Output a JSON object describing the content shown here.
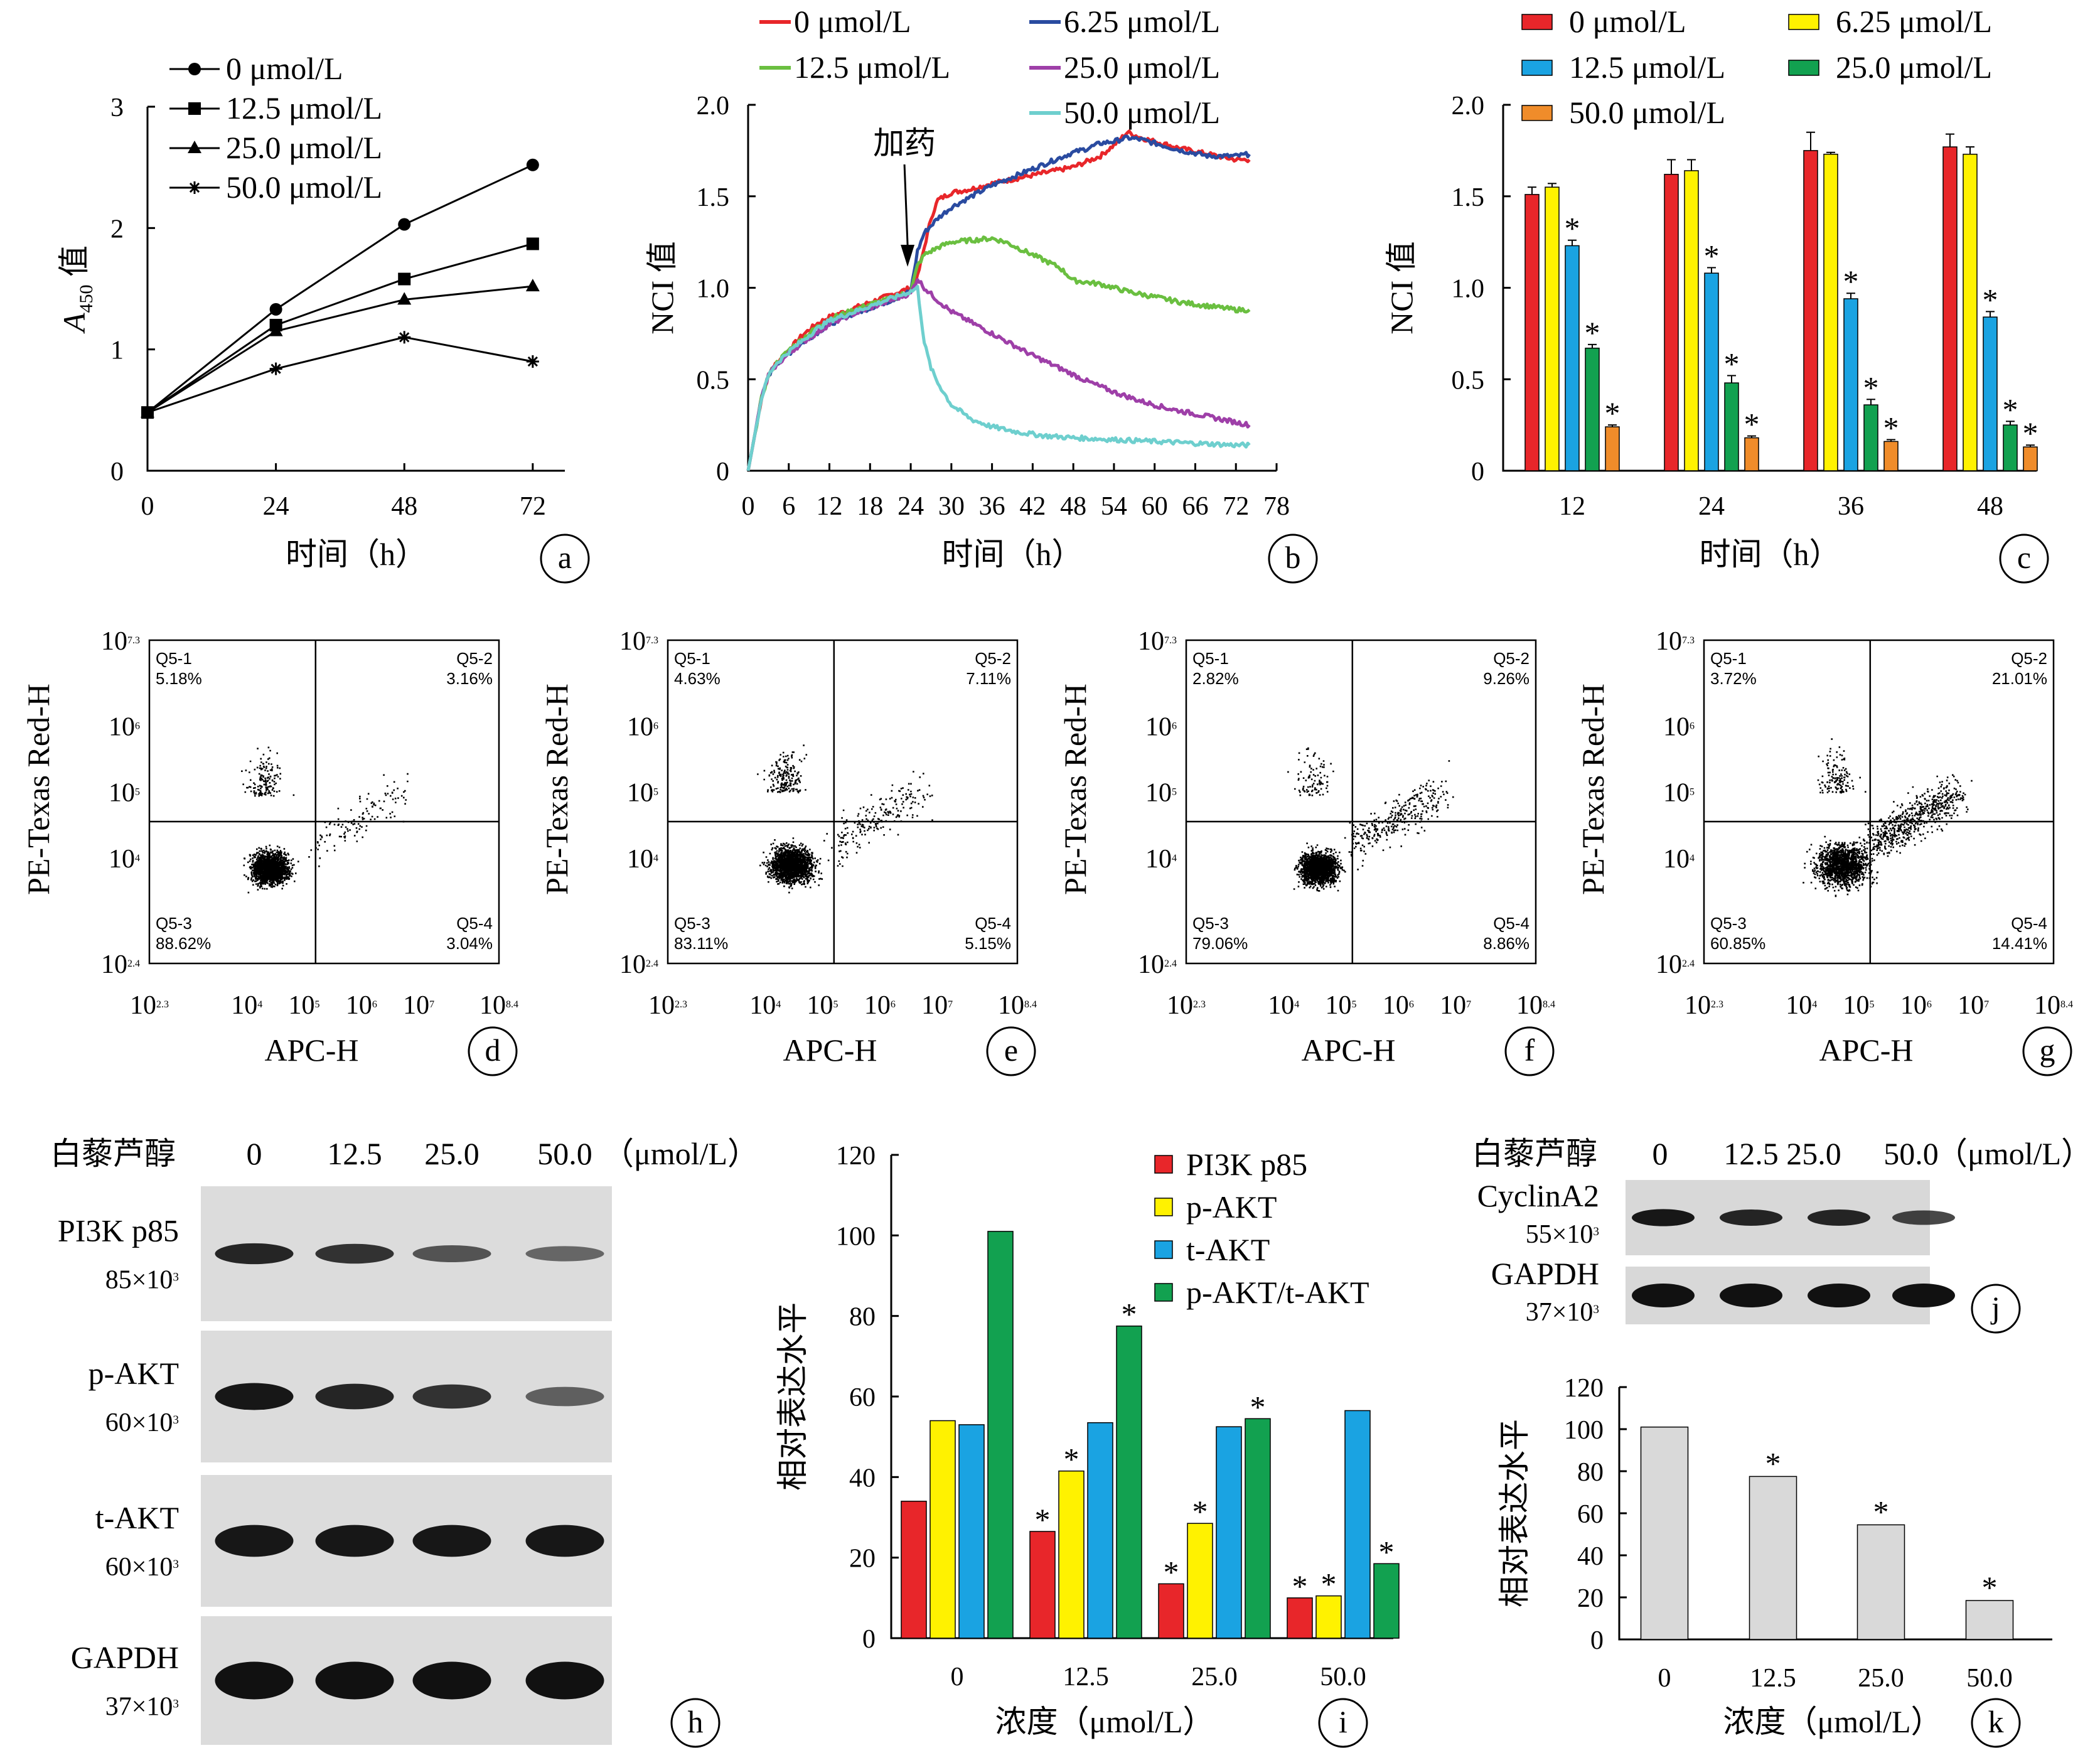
{
  "chart_data": [
    {
      "id": "a",
      "type": "line",
      "panel_label": "a",
      "xlabel": "时间（h）",
      "ylabel_main": "A",
      "ylabel_sub": "450",
      "ylabel_suffix": " 值",
      "x": [
        0,
        24,
        48,
        72
      ],
      "xlim": [
        0,
        78
      ],
      "ylim": [
        0,
        3
      ],
      "xticks": [
        "0",
        "24",
        "48",
        "72"
      ],
      "yticks": [
        "0",
        "1",
        "2",
        "3"
      ],
      "series": [
        {
          "name": "0 μmol/L",
          "marker": "circle",
          "values": [
            0.48,
            1.33,
            2.03,
            2.52
          ]
        },
        {
          "name": "12.5 μmol/L",
          "marker": "square",
          "values": [
            0.48,
            1.2,
            1.58,
            1.87
          ]
        },
        {
          "name": "25.0 μmol/L",
          "marker": "triangle",
          "values": [
            0.48,
            1.15,
            1.41,
            1.52
          ]
        },
        {
          "name": "50.0 μmol/L",
          "marker": "star",
          "values": [
            0.48,
            0.84,
            1.1,
            0.9
          ]
        }
      ]
    },
    {
      "id": "b",
      "type": "line",
      "panel_label": "b",
      "xlabel": "时间（h）",
      "ylabel": "NCI 值",
      "annotation": "加药",
      "annotation_x": 24,
      "xlim": [
        0,
        78
      ],
      "ylim": [
        0,
        2.0
      ],
      "xticks": [
        "0",
        "6",
        "12",
        "18",
        "24",
        "30",
        "36",
        "42",
        "48",
        "54",
        "60",
        "66",
        "72",
        "78"
      ],
      "yticks": [
        "0",
        "0.5",
        "1.0",
        "1.5",
        "2.0"
      ],
      "series": [
        {
          "name": "0 μmol/L",
          "color": "#e8262a",
          "x": [
            0,
            1,
            2,
            3,
            4,
            6,
            8,
            10,
            12,
            15,
            18,
            21,
            24,
            25,
            26,
            27,
            28,
            30,
            33,
            36,
            40,
            44,
            48,
            52,
            54,
            56,
            58,
            60,
            64,
            68,
            72,
            74
          ],
          "values": [
            0,
            0.2,
            0.4,
            0.52,
            0.58,
            0.66,
            0.74,
            0.8,
            0.84,
            0.88,
            0.92,
            0.96,
            1.0,
            1.06,
            1.22,
            1.38,
            1.48,
            1.52,
            1.54,
            1.57,
            1.6,
            1.63,
            1.66,
            1.72,
            1.78,
            1.85,
            1.82,
            1.8,
            1.76,
            1.73,
            1.7,
            1.7
          ]
        },
        {
          "name": "6.25 μmol/L",
          "color": "#2a4ba0",
          "x": [
            0,
            1,
            2,
            3,
            4,
            6,
            8,
            10,
            12,
            15,
            18,
            21,
            24,
            25,
            26,
            28,
            30,
            33,
            36,
            40,
            44,
            48,
            50,
            52,
            54,
            56,
            58,
            60,
            64,
            68,
            72,
            74
          ],
          "values": [
            0,
            0.2,
            0.4,
            0.52,
            0.58,
            0.64,
            0.7,
            0.75,
            0.8,
            0.85,
            0.89,
            0.93,
            0.98,
            1.2,
            1.3,
            1.38,
            1.44,
            1.5,
            1.56,
            1.62,
            1.68,
            1.74,
            1.76,
            1.79,
            1.8,
            1.82,
            1.81,
            1.79,
            1.75,
            1.72,
            1.72,
            1.73
          ]
        },
        {
          "name": "12.5 μmol/L",
          "color": "#6abf40",
          "x": [
            0,
            1,
            2,
            3,
            4,
            6,
            8,
            10,
            12,
            15,
            18,
            21,
            24,
            25,
            26,
            28,
            30,
            33,
            36,
            38,
            42,
            46,
            48,
            52,
            56,
            60,
            64,
            68,
            72,
            74
          ],
          "values": [
            0,
            0.2,
            0.4,
            0.52,
            0.58,
            0.66,
            0.72,
            0.78,
            0.83,
            0.87,
            0.91,
            0.94,
            0.98,
            1.12,
            1.18,
            1.22,
            1.25,
            1.26,
            1.27,
            1.25,
            1.18,
            1.11,
            1.04,
            1.02,
            0.98,
            0.95,
            0.92,
            0.9,
            0.88,
            0.88
          ]
        },
        {
          "name": "25.0 μmol/L",
          "color": "#9e3fa8",
          "x": [
            0,
            1,
            2,
            3,
            4,
            6,
            8,
            10,
            12,
            15,
            18,
            21,
            24,
            25,
            26,
            28,
            30,
            34,
            38,
            42,
            46,
            50,
            54,
            58,
            62,
            66,
            70,
            74
          ],
          "values": [
            0,
            0.2,
            0.4,
            0.52,
            0.57,
            0.64,
            0.7,
            0.75,
            0.8,
            0.85,
            0.89,
            0.93,
            0.97,
            1.05,
            1.0,
            0.93,
            0.87,
            0.79,
            0.71,
            0.63,
            0.56,
            0.49,
            0.43,
            0.38,
            0.34,
            0.31,
            0.28,
            0.25
          ]
        },
        {
          "name": "50.0 μmol/L",
          "color": "#6ecfce",
          "x": [
            0,
            1,
            2,
            3,
            4,
            6,
            8,
            10,
            12,
            15,
            18,
            21,
            24,
            25,
            26,
            27,
            28,
            30,
            33,
            36,
            40,
            44,
            48,
            54,
            60,
            66,
            72,
            74
          ],
          "values": [
            0,
            0.2,
            0.4,
            0.52,
            0.58,
            0.65,
            0.71,
            0.77,
            0.82,
            0.86,
            0.9,
            0.94,
            0.98,
            1.0,
            0.7,
            0.56,
            0.48,
            0.36,
            0.28,
            0.24,
            0.21,
            0.19,
            0.18,
            0.17,
            0.16,
            0.15,
            0.14,
            0.14
          ]
        }
      ]
    },
    {
      "id": "c",
      "type": "bar",
      "panel_label": "c",
      "xlabel": "时间（h）",
      "ylabel": "NCI 值",
      "ylim": [
        0,
        2.0
      ],
      "yticks": [
        "0",
        "0.5",
        "1.0",
        "1.5",
        "2.0"
      ],
      "categories": [
        "12",
        "24",
        "36",
        "48"
      ],
      "series": [
        {
          "name": "0 μmol/L",
          "color": "#e8262a",
          "values": [
            1.51,
            1.62,
            1.75,
            1.77
          ],
          "err": [
            0.04,
            0.08,
            0.1,
            0.07
          ],
          "sig": [
            false,
            false,
            false,
            false
          ]
        },
        {
          "name": "6.25 μmol/L",
          "color": "#fff200",
          "values": [
            1.55,
            1.64,
            1.73,
            1.73
          ],
          "err": [
            0.02,
            0.06,
            0.01,
            0.04
          ],
          "sig": [
            false,
            false,
            false,
            false
          ]
        },
        {
          "name": "12.5 μmol/L",
          "color": "#1aa3e2",
          "values": [
            1.23,
            1.08,
            0.94,
            0.84
          ],
          "err": [
            0.03,
            0.03,
            0.03,
            0.03
          ],
          "sig": [
            true,
            true,
            true,
            true
          ]
        },
        {
          "name": "25.0 μmol/L",
          "color": "#12a150",
          "values": [
            0.67,
            0.48,
            0.36,
            0.25
          ],
          "err": [
            0.02,
            0.04,
            0.03,
            0.02
          ],
          "sig": [
            true,
            true,
            true,
            true
          ]
        },
        {
          "name": "50.0 μmol/L",
          "color": "#f08c2a",
          "values": [
            0.24,
            0.18,
            0.16,
            0.13
          ],
          "err": [
            0.01,
            0.01,
            0.01,
            0.01
          ],
          "sig": [
            true,
            true,
            true,
            true
          ]
        }
      ]
    },
    {
      "id": "d",
      "type": "scatter",
      "panel_label": "d",
      "xlabel": "APC-H",
      "ylabel": "PE-Texas Red-H",
      "quadrants": [
        {
          "name": "Q5-1",
          "value": "5.18%"
        },
        {
          "name": "Q5-2",
          "value": "3.16%"
        },
        {
          "name": "Q5-3",
          "value": "88.62%"
        },
        {
          "name": "Q5-4",
          "value": "3.04%"
        }
      ]
    },
    {
      "id": "e",
      "type": "scatter",
      "panel_label": "e",
      "xlabel": "APC-H",
      "ylabel": "PE-Texas Red-H",
      "quadrants": [
        {
          "name": "Q5-1",
          "value": "4.63%"
        },
        {
          "name": "Q5-2",
          "value": "7.11%"
        },
        {
          "name": "Q5-3",
          "value": "83.11%"
        },
        {
          "name": "Q5-4",
          "value": "5.15%"
        }
      ]
    },
    {
      "id": "f",
      "type": "scatter",
      "panel_label": "f",
      "xlabel": "APC-H",
      "ylabel": "PE-Texas Red-H",
      "quadrants": [
        {
          "name": "Q5-1",
          "value": "2.82%"
        },
        {
          "name": "Q5-2",
          "value": "9.26%"
        },
        {
          "name": "Q5-3",
          "value": "79.06%"
        },
        {
          "name": "Q5-4",
          "value": "8.86%"
        }
      ]
    },
    {
      "id": "g",
      "type": "scatter",
      "panel_label": "g",
      "xlabel": "APC-H",
      "ylabel": "PE-Texas Red-H",
      "quadrants": [
        {
          "name": "Q5-1",
          "value": "3.72%"
        },
        {
          "name": "Q5-2",
          "value": "21.01%"
        },
        {
          "name": "Q5-3",
          "value": "60.85%"
        },
        {
          "name": "Q5-4",
          "value": "14.41%"
        }
      ]
    },
    {
      "id": "i",
      "type": "bar",
      "panel_label": "i",
      "xlabel": "浓度（μmol/L）",
      "ylabel": "相对表达水平",
      "ylim": [
        0,
        120
      ],
      "yticks": [
        "0",
        "20",
        "40",
        "60",
        "80",
        "100",
        "120"
      ],
      "categories": [
        "0",
        "12.5",
        "25.0",
        "50.0"
      ],
      "series": [
        {
          "name": "PI3K p85",
          "color": "#e8262a",
          "values": [
            34,
            26.5,
            13.5,
            10
          ],
          "sig": [
            false,
            true,
            true,
            true
          ]
        },
        {
          "name": "p-AKT",
          "color": "#fff200",
          "values": [
            54,
            41.5,
            28.5,
            10.5
          ],
          "sig": [
            false,
            true,
            true,
            true
          ]
        },
        {
          "name": "t-AKT",
          "color": "#1aa3e2",
          "values": [
            53,
            53.5,
            52.5,
            56.5
          ],
          "sig": [
            false,
            false,
            false,
            false
          ]
        },
        {
          "name": "p-AKT/t-AKT",
          "color": "#12a150",
          "values": [
            101,
            77.5,
            54.5,
            18.5
          ],
          "sig": [
            false,
            true,
            true,
            true
          ]
        }
      ]
    },
    {
      "id": "k",
      "type": "bar",
      "panel_label": "k",
      "xlabel": "浓度（μmol/L）",
      "ylabel": "相对表达水平",
      "ylim": [
        0,
        120
      ],
      "yticks": [
        "0",
        "20",
        "40",
        "60",
        "80",
        "100",
        "120"
      ],
      "categories": [
        "0",
        "12.5",
        "25.0",
        "50.0"
      ],
      "series": [
        {
          "color": "#d9d9d9",
          "values": [
            101,
            77.5,
            54.5,
            18.5
          ],
          "sig": [
            false,
            true,
            true,
            true
          ]
        }
      ]
    }
  ],
  "flow_axis": {
    "yticks": [
      {
        "base": "10",
        "exp": "7.3",
        "v": 7.3
      },
      {
        "base": "10",
        "exp": "6",
        "v": 6
      },
      {
        "base": "10",
        "exp": "5",
        "v": 5
      },
      {
        "base": "10",
        "exp": "4",
        "v": 4
      },
      {
        "base": "10",
        "exp": "2.4",
        "v": 2.4
      }
    ],
    "xticks": [
      {
        "base": "10",
        "exp": "2.3",
        "v": 2.3
      },
      {
        "base": "10",
        "exp": "4",
        "v": 4
      },
      {
        "base": "10",
        "exp": "5",
        "v": 5
      },
      {
        "base": "10",
        "exp": "6",
        "v": 6
      },
      {
        "base": "10",
        "exp": "7",
        "v": 7
      },
      {
        "base": "10",
        "exp": "8.4",
        "v": 8.4
      }
    ],
    "xlim": [
      2.3,
      8.4
    ],
    "ylim": [
      2.4,
      7.3
    ],
    "gate_x": 5.2,
    "gate_y": 4.55
  },
  "blot_h": {
    "panel_label": "h",
    "treatment": "白藜芦醇",
    "lanes": [
      "0",
      "12.5",
      "25.0",
      "50.0"
    ],
    "unit": "（μmol/L）",
    "rows": [
      {
        "name": "PI3K p85",
        "mw": "85×10",
        "mw_exp": "3",
        "intensity": [
          0.85,
          0.75,
          0.5,
          0.35
        ]
      },
      {
        "name": "p-AKT",
        "mw": "60×10",
        "mw_exp": "3",
        "intensity": [
          0.95,
          0.85,
          0.75,
          0.4
        ]
      },
      {
        "name": "t-AKT",
        "mw": "60×10",
        "mw_exp": "3",
        "intensity": [
          0.95,
          0.95,
          0.95,
          0.95
        ]
      },
      {
        "name": "GAPDH",
        "mw": "37×10",
        "mw_exp": "3",
        "intensity": [
          1,
          1,
          1,
          1
        ]
      }
    ]
  },
  "blot_j": {
    "panel_label": "j",
    "treatment": "白藜芦醇",
    "lanes": [
      "0",
      "12.5",
      "25.0",
      "50.0"
    ],
    "unit": "（μmol/L）",
    "rows": [
      {
        "name": "CyclinA2",
        "mw": "55×10",
        "mw_exp": "3",
        "intensity": [
          0.95,
          0.85,
          0.85,
          0.65
        ]
      },
      {
        "name": "GAPDH",
        "mw": "37×10",
        "mw_exp": "3",
        "intensity": [
          1,
          1,
          1,
          1
        ]
      }
    ]
  }
}
